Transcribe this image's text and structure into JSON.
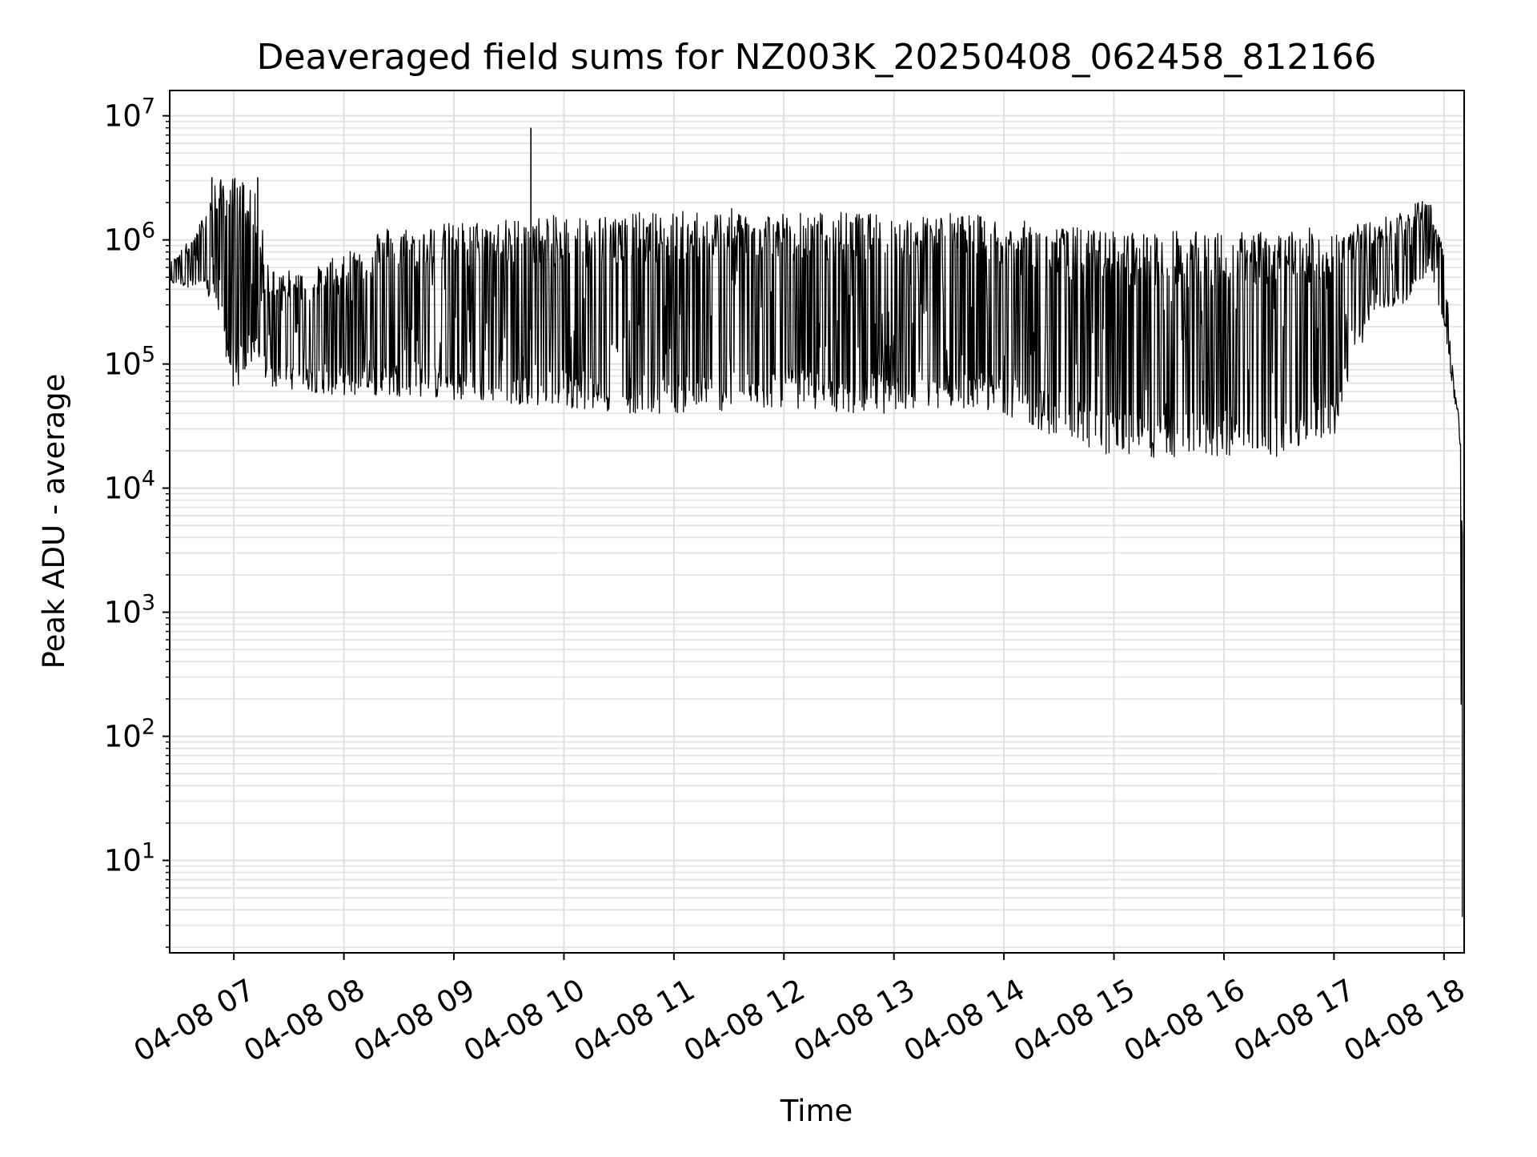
{
  "chart_data": {
    "type": "line",
    "title": "Deaveraged field sums for NZ003K_20250408_062458_812166",
    "xlabel": "Time",
    "ylabel": "Peak ADU - average",
    "yscale": "log",
    "ylim": [
      1.8,
      16000000
    ],
    "xlim": [
      "2025-04-08 06:25",
      "2025-04-08 18:11"
    ],
    "grid": "on (major and minor)",
    "line_color": "#000000",
    "x_ticks": [
      {
        "time": "2025-04-08 07:00",
        "label": "04-08 07"
      },
      {
        "time": "2025-04-08 08:00",
        "label": "04-08 08"
      },
      {
        "time": "2025-04-08 09:00",
        "label": "04-08 09"
      },
      {
        "time": "2025-04-08 10:00",
        "label": "04-08 10"
      },
      {
        "time": "2025-04-08 11:00",
        "label": "04-08 11"
      },
      {
        "time": "2025-04-08 12:00",
        "label": "04-08 12"
      },
      {
        "time": "2025-04-08 13:00",
        "label": "04-08 13"
      },
      {
        "time": "2025-04-08 14:00",
        "label": "04-08 14"
      },
      {
        "time": "2025-04-08 15:00",
        "label": "04-08 15"
      },
      {
        "time": "2025-04-08 16:00",
        "label": "04-08 16"
      },
      {
        "time": "2025-04-08 17:00",
        "label": "04-08 17"
      },
      {
        "time": "2025-04-08 18:00",
        "label": "04-08 18"
      }
    ],
    "y_ticks": [
      {
        "value": 10,
        "base": "10",
        "exp": "1"
      },
      {
        "value": 100,
        "base": "10",
        "exp": "2"
      },
      {
        "value": 1000,
        "base": "10",
        "exp": "3"
      },
      {
        "value": 10000,
        "base": "10",
        "exp": "4"
      },
      {
        "value": 100000,
        "base": "10",
        "exp": "5"
      },
      {
        "value": 1000000,
        "base": "10",
        "exp": "6"
      },
      {
        "value": 10000000,
        "base": "10",
        "exp": "7"
      }
    ],
    "series": [
      {
        "envelope": [
          {
            "time": "2025-04-08 06:25",
            "low": 450000,
            "high": 650000
          },
          {
            "time": "2025-04-08 06:40",
            "low": 400000,
            "high": 1200000
          },
          {
            "time": "2025-04-08 06:50",
            "low": 300000,
            "high": 3000000
          },
          {
            "time": "2025-04-08 07:00",
            "low": 55000,
            "high": 3300000
          },
          {
            "time": "2025-04-08 07:10",
            "low": 100000,
            "high": 3000000
          },
          {
            "time": "2025-04-08 07:20",
            "low": 65000,
            "high": 600000
          },
          {
            "time": "2025-04-08 07:40",
            "low": 60000,
            "high": 550000
          },
          {
            "time": "2025-04-08 08:00",
            "low": 55000,
            "high": 800000
          },
          {
            "time": "2025-04-08 08:20",
            "low": 55000,
            "high": 1300000
          },
          {
            "time": "2025-04-08 08:40",
            "low": 55000,
            "high": 1300000
          },
          {
            "time": "2025-04-08 09:00",
            "low": 50000,
            "high": 1400000
          },
          {
            "time": "2025-04-08 09:30",
            "low": 48000,
            "high": 1500000
          },
          {
            "time": "2025-04-08 10:00",
            "low": 45000,
            "high": 1600000
          },
          {
            "time": "2025-04-08 10:30",
            "low": 40000,
            "high": 1650000
          },
          {
            "time": "2025-04-08 11:00",
            "low": 40000,
            "high": 1700000
          },
          {
            "time": "2025-04-08 11:30",
            "low": 42000,
            "high": 1800000
          },
          {
            "time": "2025-04-08 12:00",
            "low": 45000,
            "high": 1700000
          },
          {
            "time": "2025-04-08 12:30",
            "low": 40000,
            "high": 1700000
          },
          {
            "time": "2025-04-08 13:00",
            "low": 40000,
            "high": 1600000
          },
          {
            "time": "2025-04-08 13:30",
            "low": 45000,
            "high": 1700000
          },
          {
            "time": "2025-04-08 14:00",
            "low": 40000,
            "high": 1500000
          },
          {
            "time": "2025-04-08 14:30",
            "low": 25000,
            "high": 1300000
          },
          {
            "time": "2025-04-08 15:00",
            "low": 18000,
            "high": 1200000
          },
          {
            "time": "2025-04-08 15:30",
            "low": 17000,
            "high": 1200000
          },
          {
            "time": "2025-04-08 16:00",
            "low": 18000,
            "high": 1150000
          },
          {
            "time": "2025-04-08 16:30",
            "low": 18000,
            "high": 1200000
          },
          {
            "time": "2025-04-08 17:00",
            "low": 25000,
            "high": 1300000
          },
          {
            "time": "2025-04-08 17:20",
            "low": 250000,
            "high": 1400000
          },
          {
            "time": "2025-04-08 17:40",
            "low": 300000,
            "high": 1800000
          },
          {
            "time": "2025-04-08 17:52",
            "low": 600000,
            "high": 2300000
          },
          {
            "time": "2025-04-08 18:00",
            "low": 200000,
            "high": 800000
          },
          {
            "time": "2025-04-08 18:05",
            "low": 60000,
            "high": 80000
          },
          {
            "time": "2025-04-08 18:08",
            "low": 30000,
            "high": 40000
          },
          {
            "time": "2025-04-08 18:10",
            "low": 3.5,
            "high": 20000
          }
        ],
        "spikes": [
          {
            "time": "2025-04-08 09:42",
            "value": 8000000
          },
          {
            "time": "2025-04-08 06:48",
            "value": 3200000
          },
          {
            "time": "2025-04-08 07:13",
            "value": 3200000
          }
        ]
      }
    ]
  }
}
